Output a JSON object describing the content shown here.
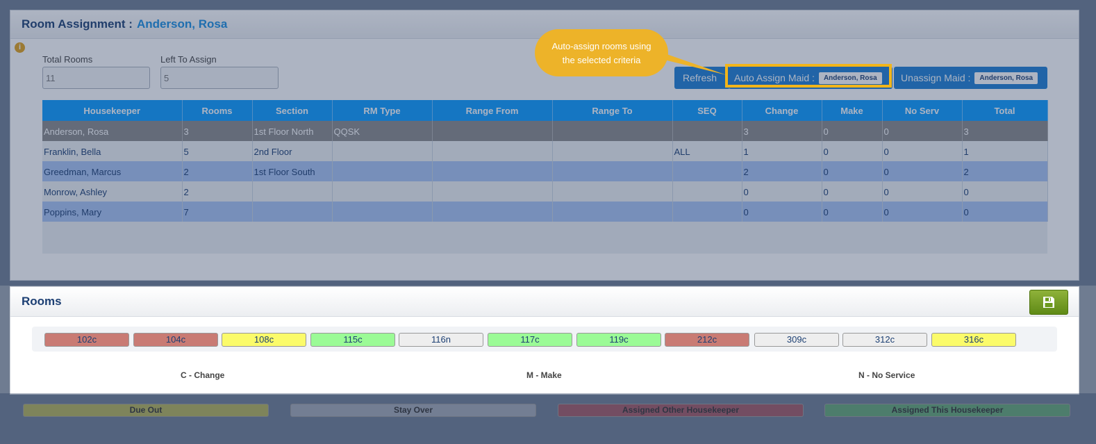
{
  "assignment": {
    "title": "Room Assignment :",
    "housekeeper_name": "Anderson, Rosa",
    "total_rooms_label": "Total Rooms",
    "total_rooms_value": "11",
    "left_to_assign_label": "Left To Assign",
    "left_to_assign_value": "5",
    "refresh_label": "Refresh",
    "auto_assign_label": "Auto Assign Maid :",
    "auto_assign_selected": "Anderson, Rosa",
    "unassign_label": "Unassign Maid :",
    "unassign_selected": "Anderson, Rosa"
  },
  "table": {
    "columns": [
      "Housekeeper",
      "Rooms",
      "Section",
      "RM Type",
      "Range From",
      "Range To",
      "SEQ",
      "Change",
      "Make",
      "No Serv",
      "Total"
    ],
    "rows": [
      [
        "Anderson, Rosa",
        "3",
        "1st Floor North",
        "QQSK",
        "",
        "",
        "",
        "3",
        "0",
        "0",
        "3"
      ],
      [
        "Franklin, Bella",
        "5",
        "2nd Floor",
        "",
        "",
        "",
        "ALL",
        "1",
        "0",
        "0",
        "1"
      ],
      [
        "Greedman, Marcus",
        "2",
        "1st Floor South",
        "",
        "",
        "",
        "",
        "2",
        "0",
        "0",
        "2"
      ],
      [
        "Monrow, Ashley",
        "2",
        "",
        "",
        "",
        "",
        "",
        "0",
        "0",
        "0",
        "0"
      ],
      [
        "Poppins, Mary",
        "7",
        "",
        "",
        "",
        "",
        "",
        "0",
        "0",
        "0",
        "0"
      ]
    ]
  },
  "rooms": {
    "title": "Rooms",
    "items": [
      {
        "label": "102c",
        "color": "#c97b74"
      },
      {
        "label": "104c",
        "color": "#c97b74"
      },
      {
        "label": "108c",
        "color": "#fbfb6a"
      },
      {
        "label": "115c",
        "color": "#9bfb96"
      },
      {
        "label": "116n",
        "color": "#eeeeee"
      },
      {
        "label": "117c",
        "color": "#9bfb96"
      },
      {
        "label": "119c",
        "color": "#9bfb96"
      },
      {
        "label": "212c",
        "color": "#c97b74"
      },
      {
        "label": "309c",
        "color": "#eeeeee"
      },
      {
        "label": "312c",
        "color": "#eeeeee"
      },
      {
        "label": "316c",
        "color": "#fbfb6a"
      }
    ],
    "legend": [
      "C - Change",
      "M - Make",
      "N - No Service"
    ]
  },
  "status_legend": [
    {
      "label": "Due Out",
      "color": "#b4b25a"
    },
    {
      "label": "Stay Over",
      "color": "#a2a8b3"
    },
    {
      "label": "Assigned Other Housekeeper",
      "color": "#a25a64"
    },
    {
      "label": "Assigned This Housekeeper",
      "color": "#64a674"
    }
  ],
  "tooltip": {
    "text_line1": "Auto-assign rooms using",
    "text_line2": "the selected criteria"
  }
}
